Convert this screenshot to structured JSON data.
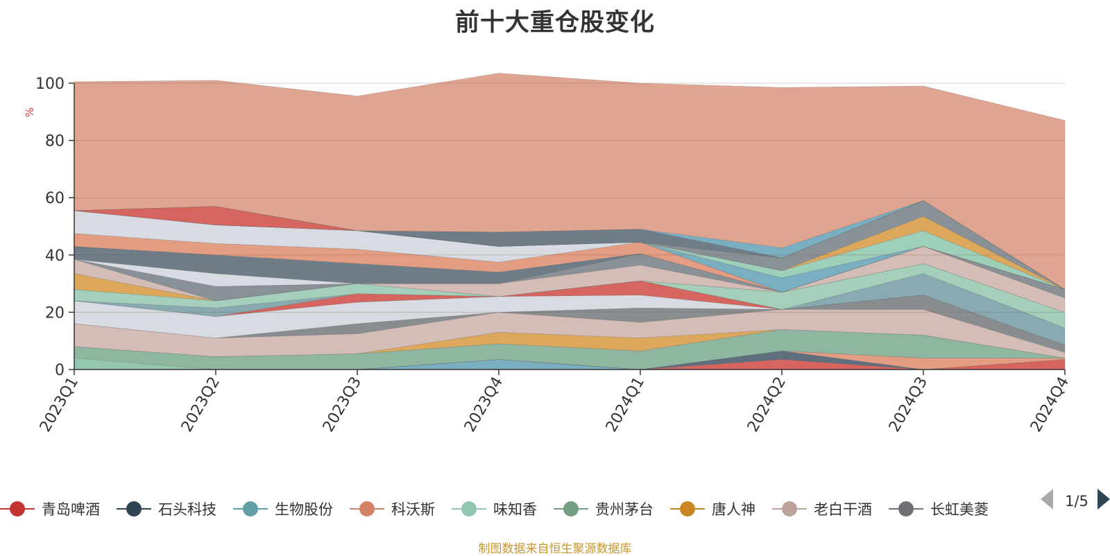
{
  "chart_data": {
    "type": "area",
    "stacked": true,
    "title": "前十大重仓股变化",
    "ylabel": "%",
    "ylim": [
      0,
      100
    ],
    "yticks": [
      0,
      20,
      40,
      60,
      80,
      100
    ],
    "grid": true,
    "categories": [
      "2023Q1",
      "2023Q2",
      "2023Q3",
      "2023Q4",
      "2024Q1",
      "2024Q2",
      "2024Q3",
      "2024Q4"
    ],
    "series": [
      {
        "name": "",
        "color": "#7aaec1",
        "values": [
          0,
          0,
          0,
          3.5,
          0,
          0,
          0,
          0
        ]
      },
      {
        "name": "",
        "color": "#d7655f",
        "values": [
          0,
          0,
          0,
          0,
          0,
          3.5,
          0,
          3.5
        ]
      },
      {
        "name": "",
        "color": "#5f6f7e",
        "values": [
          0,
          0,
          0,
          0,
          0,
          3.0,
          0,
          0
        ]
      },
      {
        "name": "",
        "color": "#e39d82",
        "values": [
          0,
          0,
          0,
          0,
          0,
          0,
          4.0,
          0.5
        ]
      },
      {
        "name": "",
        "color": "#95c7b0",
        "values": [
          4.0,
          0,
          0,
          0,
          0,
          0,
          0,
          0
        ]
      },
      {
        "name": "",
        "color": "#8fb6a0",
        "values": [
          4.0,
          4.5,
          5.5,
          5.5,
          6.5,
          7.5,
          8.0,
          0
        ]
      },
      {
        "name": "",
        "color": "#dda85c",
        "values": [
          0,
          0,
          0,
          4.0,
          4.5,
          0,
          0,
          0
        ]
      },
      {
        "name": "",
        "color": "#d3bdb6",
        "values": [
          8.0,
          6.5,
          7.0,
          7.0,
          5.5,
          7.0,
          9.0,
          2.0
        ]
      },
      {
        "name": "",
        "color": "#8a8d90",
        "values": [
          0,
          0,
          3.5,
          0,
          5.0,
          0,
          5.0,
          2.5
        ]
      },
      {
        "name": "",
        "color": "#d8dce2",
        "values": [
          8.0,
          7.5,
          7.5,
          5.5,
          4.5,
          0,
          0,
          0
        ]
      },
      {
        "name": "",
        "color": "#d7655f",
        "values": [
          0,
          0,
          3.0,
          0,
          5.0,
          0,
          0,
          0
        ]
      },
      {
        "name": "",
        "color": "#8aaab2",
        "values": [
          0,
          3.0,
          0,
          0,
          0,
          0,
          7.5,
          6.0
        ]
      },
      {
        "name": "",
        "color": "#a4cfbb",
        "values": [
          4.0,
          2.5,
          3.5,
          0,
          0,
          6.0,
          3.5,
          5.5
        ]
      },
      {
        "name": "",
        "color": "#dda85c",
        "values": [
          5.5,
          0,
          0,
          0,
          0,
          0,
          0,
          0
        ]
      },
      {
        "name": "",
        "color": "#d3bdb6",
        "values": [
          5.0,
          0,
          0,
          4.5,
          5.5,
          0,
          6.0,
          5.0
        ]
      },
      {
        "name": "",
        "color": "#8a9196",
        "values": [
          0,
          5.0,
          0,
          0,
          4.0,
          0,
          0,
          3.0
        ]
      },
      {
        "name": "",
        "color": "#d8dce2",
        "values": [
          0,
          4.5,
          0,
          0,
          0,
          0,
          0,
          0
        ]
      },
      {
        "name": "",
        "color": "#6f7d88",
        "values": [
          4.5,
          6.5,
          7.0,
          4.0,
          0,
          0,
          0,
          0
        ]
      },
      {
        "name": "",
        "color": "#e39d82",
        "values": [
          4.5,
          4.0,
          5.0,
          3.5,
          4.0,
          0,
          0,
          0
        ]
      },
      {
        "name": "",
        "color": "#d8dce2",
        "values": [
          8.0,
          6.5,
          6.5,
          5.5,
          0,
          0,
          0,
          0
        ]
      },
      {
        "name": "",
        "color": "#7aaec1",
        "values": [
          0,
          0,
          0,
          0,
          0,
          5.0,
          0,
          0
        ]
      },
      {
        "name": "",
        "color": "#9ecfb9",
        "values": [
          0,
          0,
          0,
          0,
          0,
          2.5,
          5.5,
          0
        ]
      },
      {
        "name": "",
        "color": "#dda85c",
        "values": [
          0,
          0,
          0,
          0,
          0,
          0,
          5.0,
          0
        ]
      },
      {
        "name": "",
        "color": "#8a9196",
        "values": [
          0,
          0,
          0,
          0,
          0,
          4.5,
          5.5,
          0
        ]
      },
      {
        "name": "",
        "color": "#d7655f",
        "values": [
          0,
          6.5,
          0,
          0,
          0,
          0,
          0,
          0
        ]
      },
      {
        "name": "",
        "color": "#6f7d88",
        "values": [
          0,
          0,
          0,
          5.0,
          4.5,
          0,
          0,
          0
        ]
      },
      {
        "name": "",
        "color": "#7aaec1",
        "values": [
          0,
          0,
          0,
          0,
          0,
          3.5,
          0,
          0
        ]
      },
      {
        "name": "",
        "color": "#e0a591",
        "values": [
          45.0,
          44.0,
          47.0,
          55.5,
          51.0,
          56.0,
          40.0,
          59.0
        ]
      }
    ],
    "legend": {
      "position": "bottom",
      "items": [
        {
          "name": "青岛啤酒",
          "color": "#c23531"
        },
        {
          "name": "石头科技",
          "color": "#2f4554"
        },
        {
          "name": "生物股份",
          "color": "#61a0a8"
        },
        {
          "name": "科沃斯",
          "color": "#d48265"
        },
        {
          "name": "味知香",
          "color": "#91c7ae"
        },
        {
          "name": "贵州茅台",
          "color": "#749f83"
        },
        {
          "name": "唐人神",
          "color": "#ca8622"
        },
        {
          "name": "老白干酒",
          "color": "#bda29a"
        },
        {
          "name": "长虹美菱",
          "color": "#6e7074"
        }
      ],
      "page": "1/5"
    }
  },
  "source_note": "制图数据来自恒生聚源数据库"
}
